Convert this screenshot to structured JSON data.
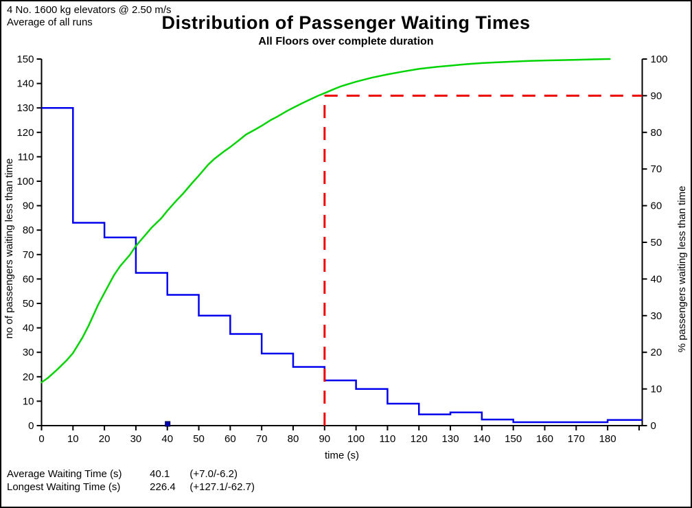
{
  "header": {
    "line1": "4 No. 1600 kg elevators @ 2.50 m/s",
    "line2": "Average of all runs"
  },
  "chart": {
    "title": "Distribution of Passenger Waiting Times",
    "subtitle": "All Floors over complete duration",
    "xlabel": "time (s)"
  },
  "footer": {
    "rows": [
      {
        "label": "Average Waiting Time (s)",
        "value": "40.1",
        "range": "(+7.0/-6.2)"
      },
      {
        "label": "Longest Waiting Time (s)",
        "value": "226.4",
        "range": "(+127.1/-62.7)"
      }
    ]
  },
  "colors": {
    "histogram": "#0000ee",
    "cumulative": "#00d400",
    "reference": "#ee0000",
    "marker": "#0000bb",
    "axis": "#000000"
  },
  "chart_data": {
    "type": "line",
    "title": "Distribution of Passenger Waiting Times",
    "subtitle": "All Floors over complete duration",
    "xlabel": "time (s)",
    "ylabel_left": "no of passengers waiting less than time",
    "ylabel_right": "% passengers waiting less than time",
    "xlim": [
      0,
      191
    ],
    "ylim_left": [
      0,
      150
    ],
    "ylim_right": [
      0,
      100
    ],
    "grid": false,
    "x_ticks": [
      0,
      10,
      20,
      30,
      40,
      50,
      60,
      70,
      80,
      90,
      100,
      110,
      120,
      130,
      140,
      150,
      160,
      170,
      180,
      190
    ],
    "x_tick_labels": [
      "0",
      "10",
      "20",
      "30",
      "40",
      "50",
      "60",
      "70",
      "80",
      "90",
      "100",
      "110",
      "120",
      "130",
      "140",
      "150",
      "160",
      "170",
      "180"
    ],
    "y_ticks_left": [
      "0",
      "10",
      "20",
      "30",
      "40",
      "50",
      "60",
      "70",
      "80",
      "90",
      "100",
      "110",
      "120",
      "130",
      "140",
      "150"
    ],
    "y_ticks_right": [
      "0",
      "10",
      "20",
      "30",
      "40",
      "50",
      "60",
      "70",
      "80",
      "90",
      "100"
    ],
    "series": [
      {
        "name": "no of passengers waiting less than time (step histogram)",
        "type": "step",
        "axis": "left",
        "color": "#0000ee",
        "bin_edges": [
          0,
          10,
          20,
          30,
          40,
          50,
          60,
          70,
          80,
          90,
          100,
          110,
          120,
          130,
          140,
          150,
          160,
          170,
          180,
          191
        ],
        "values": [
          130,
          83,
          77,
          62.5,
          53.5,
          45,
          37.5,
          29.5,
          24,
          18.5,
          15,
          9,
          4.6,
          5.4,
          2.5,
          1.4,
          1.4,
          1.4,
          2.3
        ]
      },
      {
        "name": "% passengers waiting less than time (cumulative)",
        "type": "line",
        "axis": "right",
        "color": "#00d400",
        "points": [
          [
            0,
            11.8
          ],
          [
            2,
            13.0
          ],
          [
            5,
            15.3
          ],
          [
            8,
            17.8
          ],
          [
            10,
            19.8
          ],
          [
            13,
            24.0
          ],
          [
            15,
            27.3
          ],
          [
            18,
            33.0
          ],
          [
            20,
            36.2
          ],
          [
            23,
            41.0
          ],
          [
            25,
            43.5
          ],
          [
            28,
            46.5
          ],
          [
            30,
            49.0
          ],
          [
            33,
            52.0
          ],
          [
            35,
            54.0
          ],
          [
            38,
            56.5
          ],
          [
            40,
            58.6
          ],
          [
            43,
            61.5
          ],
          [
            45,
            63.3
          ],
          [
            48,
            66.3
          ],
          [
            50,
            68.2
          ],
          [
            53,
            71.2
          ],
          [
            55,
            72.8
          ],
          [
            58,
            74.8
          ],
          [
            60,
            76.0
          ],
          [
            63,
            78.0
          ],
          [
            65,
            79.4
          ],
          [
            68,
            80.8
          ],
          [
            70,
            81.8
          ],
          [
            73,
            83.4
          ],
          [
            75,
            84.3
          ],
          [
            78,
            85.8
          ],
          [
            80,
            86.7
          ],
          [
            83,
            88.0
          ],
          [
            85,
            88.8
          ],
          [
            88,
            90.0
          ],
          [
            90,
            90.7
          ],
          [
            93,
            91.8
          ],
          [
            95,
            92.5
          ],
          [
            98,
            93.3
          ],
          [
            100,
            93.8
          ],
          [
            105,
            94.9
          ],
          [
            110,
            95.8
          ],
          [
            115,
            96.6
          ],
          [
            120,
            97.3
          ],
          [
            125,
            97.8
          ],
          [
            130,
            98.2
          ],
          [
            135,
            98.6
          ],
          [
            140,
            98.9
          ],
          [
            145,
            99.1
          ],
          [
            150,
            99.3
          ],
          [
            155,
            99.5
          ],
          [
            160,
            99.6
          ],
          [
            165,
            99.7
          ],
          [
            170,
            99.8
          ],
          [
            175,
            99.9
          ],
          [
            180,
            100
          ],
          [
            180.7,
            100
          ]
        ]
      }
    ],
    "annotations": {
      "reference_time_s": 90,
      "reference_percent": 90,
      "style": "dashed",
      "color": "#ee0000",
      "average_marker_time_s": 40.1
    }
  }
}
